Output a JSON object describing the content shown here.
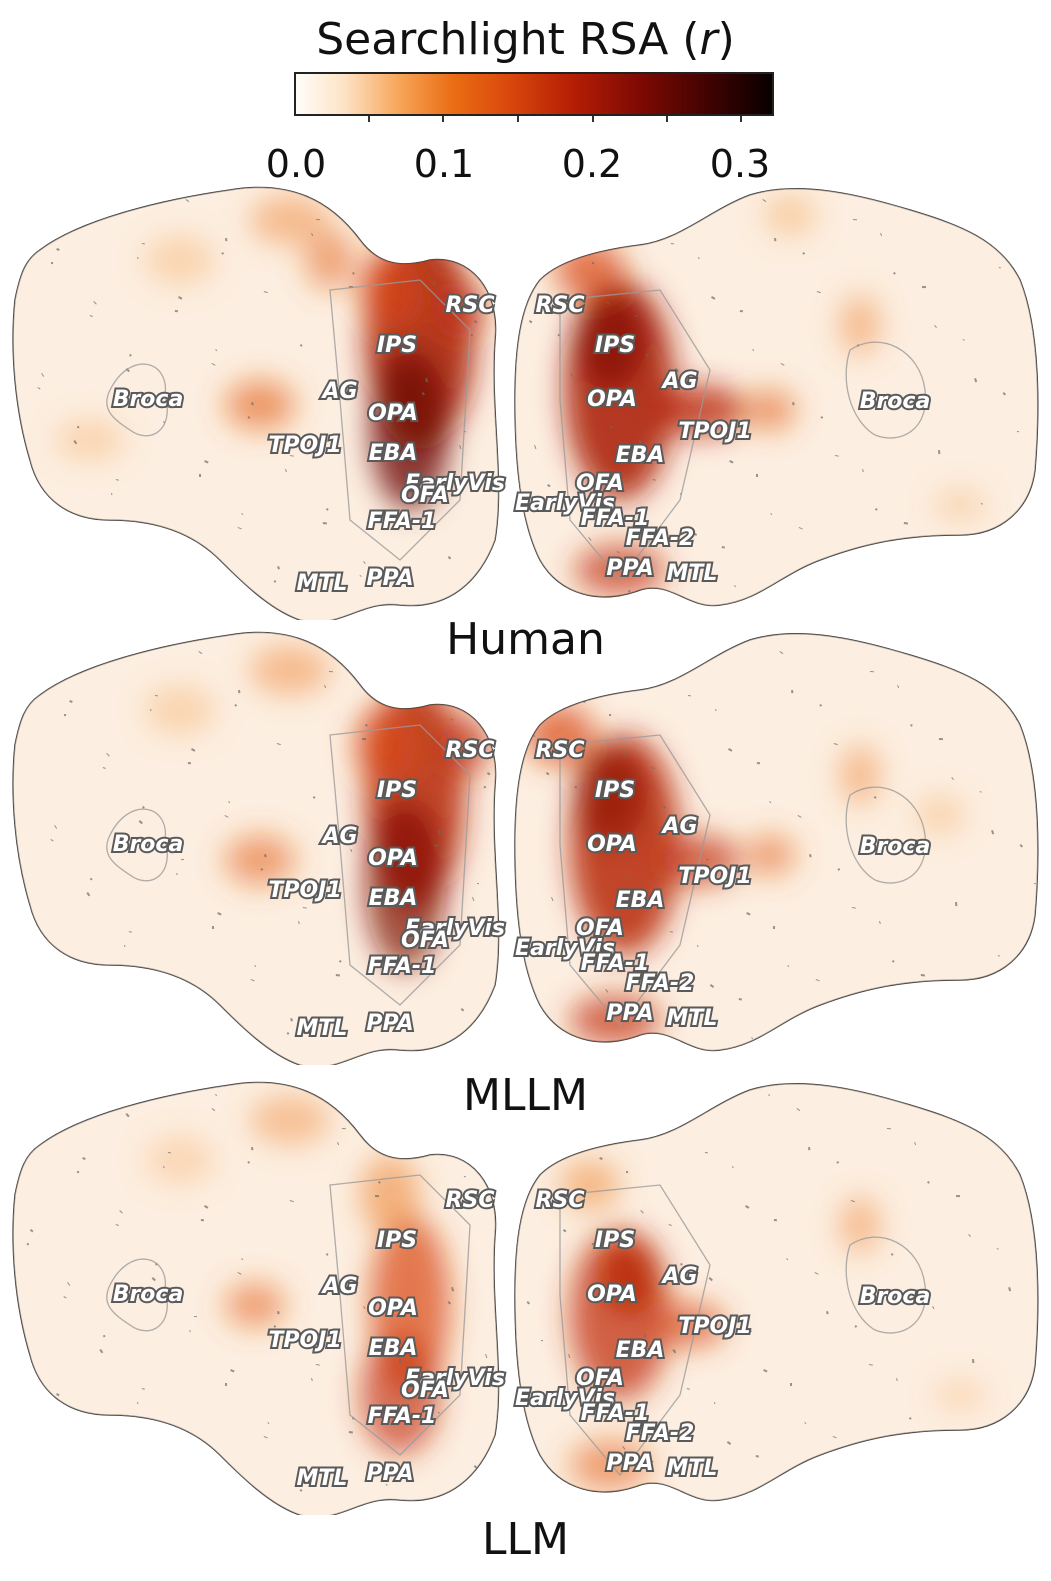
{
  "figure": {
    "title_main": "Searchlight RSA (",
    "title_var": "r",
    "title_end": ")",
    "colorbar_ticks": [
      "0.0",
      "0.1",
      "0.2",
      "0.3"
    ],
    "colors": {
      "low": "#fffdf9",
      "mid": "#ea6d14",
      "high": "#b51e05",
      "max": "#080000"
    }
  },
  "panels": [
    {
      "caption": "Human"
    },
    {
      "caption": "MLLM"
    },
    {
      "caption": "LLM"
    }
  ],
  "roi_labels": {
    "left": [
      "RSC",
      "IPS",
      "AG",
      "Broca",
      "OPA",
      "TPOJ1",
      "EBA",
      "EarlyVis",
      "OFA",
      "FFA-1",
      "MTL",
      "PPA"
    ],
    "right": [
      "RSC",
      "IPS",
      "AG",
      "OPA",
      "Broca",
      "TPOJ1",
      "EBA",
      "OFA",
      "EarlyVis",
      "FFA-1",
      "FFA-2",
      "PPA",
      "MTL"
    ]
  }
}
